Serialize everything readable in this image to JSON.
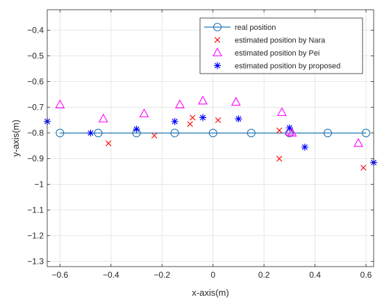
{
  "chart_data": {
    "type": "scatter",
    "title": "",
    "xlabel": "x-axis(m)",
    "ylabel": "y-axis(m)",
    "xlim": [
      -0.65,
      0.63
    ],
    "ylim": [
      -1.32,
      -0.32
    ],
    "xticks": [
      -0.6,
      -0.4,
      -0.2,
      0,
      0.2,
      0.4,
      0.6
    ],
    "xtick_labels": [
      "−0.6",
      "−0.4",
      "−0.2",
      "0",
      "0.2",
      "0.4",
      "0.6"
    ],
    "yticks": [
      -0.4,
      -0.5,
      -0.6,
      -0.7,
      -0.8,
      -0.9,
      -1,
      -1.1,
      -1.2,
      -1.3
    ],
    "ytick_labels": [
      "−0.4",
      "−0.5",
      "−0.6",
      "−0.7",
      "−0.8",
      "−0.9",
      "−1",
      "−1.1",
      "−1.2",
      "−1.3"
    ],
    "grid": true,
    "legend_position": "top-right",
    "series": [
      {
        "name": "real position",
        "marker": "circle",
        "line": true,
        "color": "#1f77b4",
        "x": [
          -0.6,
          -0.45,
          -0.3,
          -0.15,
          0,
          0.15,
          0.3,
          0.45,
          0.6
        ],
        "y": [
          -0.8,
          -0.8,
          -0.8,
          -0.8,
          -0.8,
          -0.8,
          -0.8,
          -0.8,
          -0.8
        ]
      },
      {
        "name": "estimated position by Nara",
        "marker": "x",
        "line": false,
        "color": "#ff0000",
        "x": [
          -0.41,
          -0.23,
          -0.09,
          -0.08,
          0.02,
          0.26,
          0.26,
          0.59
        ],
        "y": [
          -0.84,
          -0.81,
          -0.765,
          -0.74,
          -0.75,
          -0.79,
          -0.9,
          -0.935
        ]
      },
      {
        "name": "estimated position by Pei",
        "marker": "triangle",
        "line": false,
        "color": "#ff00ff",
        "x": [
          -0.6,
          -0.43,
          -0.27,
          -0.13,
          -0.04,
          0.09,
          0.27,
          0.3,
          0.31,
          0.57
        ],
        "y": [
          -0.69,
          -0.745,
          -0.725,
          -0.69,
          -0.675,
          -0.68,
          -0.72,
          -0.795,
          -0.8,
          -0.84
        ]
      },
      {
        "name": "estimated position by proposed",
        "marker": "star",
        "line": false,
        "color": "#0000ff",
        "x": [
          -0.65,
          -0.48,
          -0.3,
          -0.15,
          -0.04,
          0.1,
          0.3,
          0.36,
          0.63
        ],
        "y": [
          -0.755,
          -0.8,
          -0.785,
          -0.755,
          -0.74,
          -0.745,
          -0.78,
          -0.855,
          -0.915
        ]
      }
    ]
  }
}
